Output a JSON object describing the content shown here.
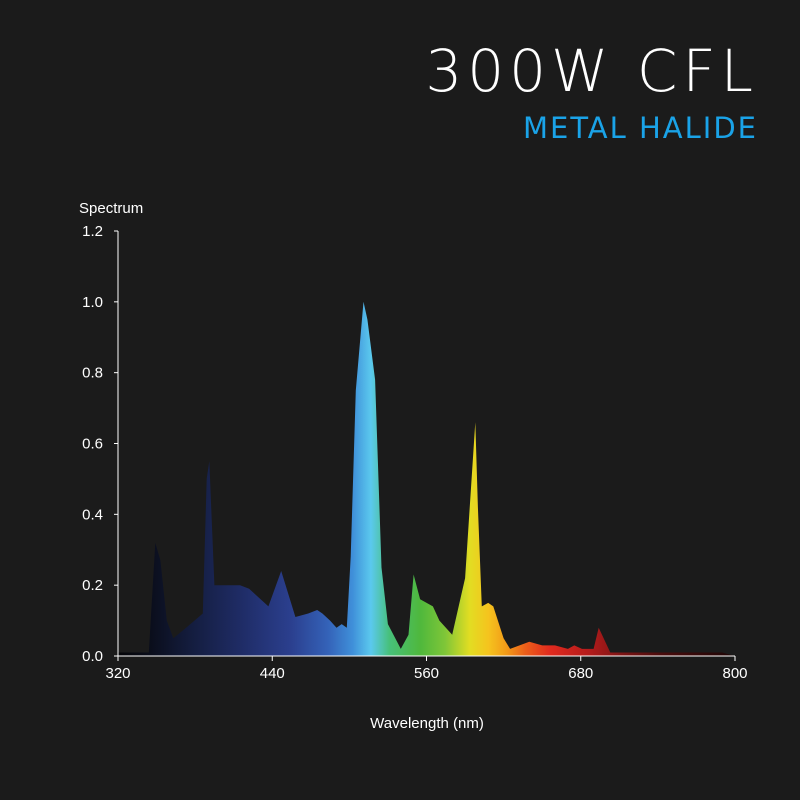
{
  "header": {
    "title": "300W CFL",
    "subtitle": "METAL HALIDE",
    "subtitle_color": "#1aa3e8"
  },
  "chart_data": {
    "type": "area",
    "title": "300W CFL",
    "subtitle": "METAL HALIDE",
    "ylabel": "Spectrum",
    "xlabel": "Wavelength (nm)",
    "xlim": [
      320,
      800
    ],
    "ylim": [
      0,
      1.2
    ],
    "x_ticks": [
      320,
      440,
      560,
      680,
      800
    ],
    "y_ticks": [
      "0.0",
      "0.2",
      "0.4",
      "0.6",
      "0.8",
      "1.0",
      "1.2"
    ],
    "grid": false,
    "legend": "none",
    "fill": "visible-spectrum gradient",
    "x": [
      320,
      344,
      349,
      353,
      358,
      363,
      373,
      386,
      389,
      391,
      395,
      398,
      405,
      415,
      422,
      437,
      447,
      458,
      468,
      475,
      479,
      485,
      490,
      494,
      498,
      501,
      505,
      511,
      514,
      520,
      525,
      530,
      540,
      546,
      550,
      555,
      565,
      570,
      580,
      590,
      598,
      600,
      603,
      608,
      612,
      620,
      625,
      640,
      650,
      660,
      670,
      675,
      681,
      685,
      690,
      694,
      703,
      709,
      722,
      740,
      760,
      770,
      790,
      800
    ],
    "values": [
      0.01,
      0.01,
      0.32,
      0.27,
      0.1,
      0.05,
      0.08,
      0.12,
      0.5,
      0.55,
      0.2,
      0.2,
      0.2,
      0.2,
      0.19,
      0.14,
      0.24,
      0.11,
      0.12,
      0.13,
      0.12,
      0.1,
      0.08,
      0.09,
      0.08,
      0.28,
      0.75,
      1.0,
      0.95,
      0.78,
      0.25,
      0.09,
      0.02,
      0.06,
      0.23,
      0.16,
      0.14,
      0.1,
      0.06,
      0.22,
      0.66,
      0.42,
      0.14,
      0.15,
      0.14,
      0.05,
      0.02,
      0.04,
      0.03,
      0.03,
      0.02,
      0.03,
      0.02,
      0.02,
      0.02,
      0.08,
      0.01,
      0.01,
      0.01,
      0.01,
      0.01,
      0.01,
      0.01,
      0.0
    ]
  }
}
